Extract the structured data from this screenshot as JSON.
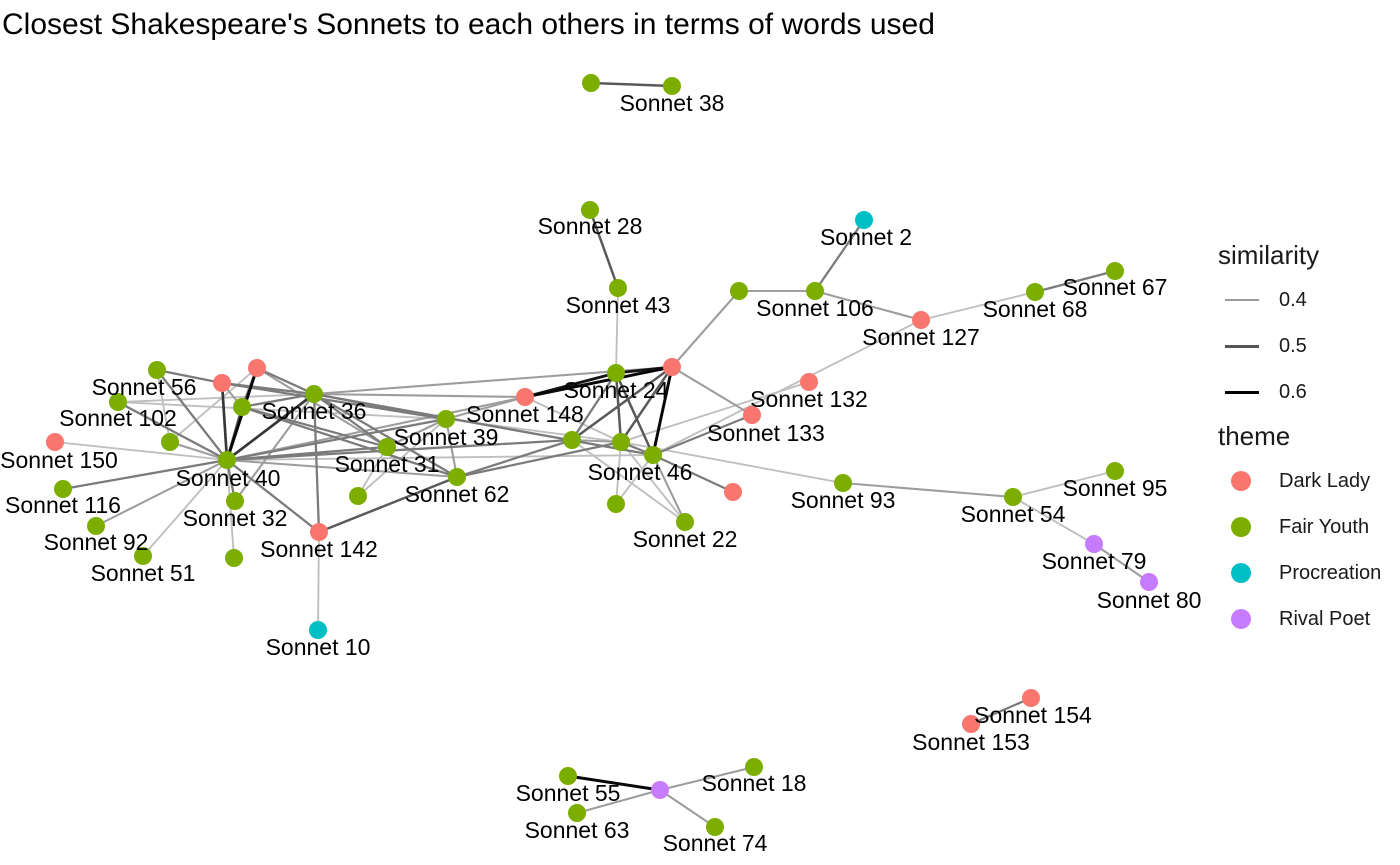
{
  "title": "Closest Shakespeare's Sonnets to each others in terms of words used",
  "colors": {
    "Dark Lady": "#F8766D",
    "Fair Youth": "#7CAE00",
    "Procreation": "#00BFC4",
    "Rival Poet": "#C77CFF"
  },
  "legend": {
    "similarity_title": "similarity",
    "similarity_items": [
      {
        "label": "0.4",
        "color": "#9a9a9a",
        "width": 2
      },
      {
        "label": "0.5",
        "color": "#555555",
        "width": 3
      },
      {
        "label": "0.6",
        "color": "#000000",
        "width": 3
      }
    ],
    "theme_title": "theme",
    "theme_items": [
      "Dark Lady",
      "Fair Youth",
      "Procreation",
      "Rival Poet"
    ]
  },
  "nodes": [
    {
      "id": "Sonnet 38",
      "label": "Sonnet 38",
      "theme": "Fair Youth"
    },
    {
      "id": "n38b",
      "label": "",
      "theme": "Fair Youth"
    },
    {
      "id": "Sonnet 28",
      "label": "Sonnet 28",
      "theme": "Fair Youth"
    },
    {
      "id": "Sonnet 2",
      "label": "Sonnet 2",
      "theme": "Procreation"
    },
    {
      "id": "Sonnet 43",
      "label": "Sonnet 43",
      "theme": "Fair Youth"
    },
    {
      "id": "n106b",
      "label": "",
      "theme": "Fair Youth"
    },
    {
      "id": "Sonnet 106",
      "label": "Sonnet 106",
      "theme": "Fair Youth"
    },
    {
      "id": "Sonnet 127",
      "label": "Sonnet 127",
      "theme": "Dark Lady"
    },
    {
      "id": "Sonnet 68",
      "label": "Sonnet 68",
      "theme": "Fair Youth"
    },
    {
      "id": "Sonnet 67",
      "label": "Sonnet 67",
      "theme": "Fair Youth"
    },
    {
      "id": "nHub",
      "label": "",
      "theme": "Dark Lady"
    },
    {
      "id": "Sonnet 24",
      "label": "Sonnet 24",
      "theme": "Fair Youth"
    },
    {
      "id": "Sonnet 132",
      "label": "Sonnet 132",
      "theme": "Dark Lady"
    },
    {
      "id": "Sonnet 133",
      "label": "Sonnet 133",
      "theme": "Dark Lady"
    },
    {
      "id": "Sonnet 148",
      "label": "Sonnet 148",
      "theme": "Dark Lady"
    },
    {
      "id": "Sonnet 46",
      "label": "Sonnet 46",
      "theme": "Fair Youth"
    },
    {
      "id": "nMid",
      "label": "",
      "theme": "Fair Youth"
    },
    {
      "id": "n46a",
      "label": "",
      "theme": "Fair Youth"
    },
    {
      "id": "n46b",
      "label": "",
      "theme": "Dark Lady"
    },
    {
      "id": "n46c",
      "label": "",
      "theme": "Fair Youth"
    },
    {
      "id": "Sonnet 22",
      "label": "Sonnet 22",
      "theme": "Fair Youth"
    },
    {
      "id": "Sonnet 93",
      "label": "Sonnet 93",
      "theme": "Fair Youth"
    },
    {
      "id": "Sonnet 54",
      "label": "Sonnet 54",
      "theme": "Fair Youth"
    },
    {
      "id": "Sonnet 95",
      "label": "Sonnet 95",
      "theme": "Fair Youth"
    },
    {
      "id": "Sonnet 79",
      "label": "Sonnet 79",
      "theme": "Rival Poet"
    },
    {
      "id": "Sonnet 80",
      "label": "Sonnet 80",
      "theme": "Rival Poet"
    },
    {
      "id": "Sonnet 56",
      "label": "Sonnet 56",
      "theme": "Dark Lady"
    },
    {
      "id": "n56a",
      "label": "",
      "theme": "Fair Youth"
    },
    {
      "id": "n56b",
      "label": "",
      "theme": "Dark Lady"
    },
    {
      "id": "n36a",
      "label": "",
      "theme": "Fair Youth"
    },
    {
      "id": "Sonnet 36",
      "label": "Sonnet 36",
      "theme": "Fair Youth"
    },
    {
      "id": "Sonnet 102",
      "label": "Sonnet 102",
      "theme": "Fair Youth"
    },
    {
      "id": "Sonnet 150",
      "label": "Sonnet 150",
      "theme": "Dark Lady"
    },
    {
      "id": "n102a",
      "label": "",
      "theme": "Fair Youth"
    },
    {
      "id": "Sonnet 40",
      "label": "Sonnet 40",
      "theme": "Fair Youth"
    },
    {
      "id": "Sonnet 39",
      "label": "Sonnet 39",
      "theme": "Fair Youth"
    },
    {
      "id": "Sonnet 31",
      "label": "Sonnet 31",
      "theme": "Fair Youth"
    },
    {
      "id": "Sonnet 62",
      "label": "Sonnet 62",
      "theme": "Fair Youth"
    },
    {
      "id": "n62a",
      "label": "",
      "theme": "Fair Youth"
    },
    {
      "id": "Sonnet 32",
      "label": "Sonnet 32",
      "theme": "Fair Youth"
    },
    {
      "id": "Sonnet 116",
      "label": "Sonnet 116",
      "theme": "Fair Youth"
    },
    {
      "id": "Sonnet 92",
      "label": "Sonnet 92",
      "theme": "Fair Youth"
    },
    {
      "id": "Sonnet 51",
      "label": "Sonnet 51",
      "theme": "Fair Youth"
    },
    {
      "id": "n51b",
      "label": "",
      "theme": "Fair Youth"
    },
    {
      "id": "Sonnet 142",
      "label": "Sonnet 142",
      "theme": "Dark Lady"
    },
    {
      "id": "Sonnet 10",
      "label": "Sonnet 10",
      "theme": "Procreation"
    },
    {
      "id": "Sonnet 154",
      "label": "Sonnet 154",
      "theme": "Dark Lady"
    },
    {
      "id": "Sonnet 153",
      "label": "Sonnet 153",
      "theme": "Dark Lady"
    },
    {
      "id": "Sonnet 55",
      "label": "Sonnet 55",
      "theme": "Fair Youth"
    },
    {
      "id": "nRP",
      "label": "",
      "theme": "Rival Poet"
    },
    {
      "id": "Sonnet 18",
      "label": "Sonnet 18",
      "theme": "Fair Youth"
    },
    {
      "id": "Sonnet 63",
      "label": "Sonnet 63",
      "theme": "Fair Youth"
    },
    {
      "id": "Sonnet 74",
      "label": "Sonnet 74",
      "theme": "Fair Youth"
    }
  ],
  "edges": [
    {
      "source": "n38b",
      "target": "Sonnet 38",
      "weight": 0.5
    },
    {
      "source": "Sonnet 28",
      "target": "Sonnet 43",
      "weight": 0.5
    },
    {
      "source": "Sonnet 43",
      "target": "Sonnet 24",
      "weight": 0.35
    },
    {
      "source": "Sonnet 2",
      "target": "Sonnet 106",
      "weight": 0.45
    },
    {
      "source": "n106b",
      "target": "Sonnet 106",
      "weight": 0.4
    },
    {
      "source": "Sonnet 106",
      "target": "Sonnet 127",
      "weight": 0.4
    },
    {
      "source": "n106b",
      "target": "nHub",
      "weight": 0.4
    },
    {
      "source": "Sonnet 127",
      "target": "Sonnet 68",
      "weight": 0.35
    },
    {
      "source": "Sonnet 68",
      "target": "Sonnet 67",
      "weight": 0.45
    },
    {
      "source": "Sonnet 127",
      "target": "Sonnet 46",
      "weight": 0.35
    },
    {
      "source": "nHub",
      "target": "Sonnet 24",
      "weight": 0.6
    },
    {
      "source": "nHub",
      "target": "Sonnet 148",
      "weight": 0.62
    },
    {
      "source": "nHub",
      "target": "Sonnet 46",
      "weight": 0.62
    },
    {
      "source": "nHub",
      "target": "nMid",
      "weight": 0.5
    },
    {
      "source": "nHub",
      "target": "n46a",
      "weight": 0.5
    },
    {
      "source": "nHub",
      "target": "Sonnet 133",
      "weight": 0.4
    },
    {
      "source": "nHub",
      "target": "Sonnet 36",
      "weight": 0.4
    },
    {
      "source": "Sonnet 24",
      "target": "Sonnet 148",
      "weight": 0.6
    },
    {
      "source": "Sonnet 24",
      "target": "n46a",
      "weight": 0.5
    },
    {
      "source": "Sonnet 24",
      "target": "Sonnet 46",
      "weight": 0.5
    },
    {
      "source": "Sonnet 24",
      "target": "nMid",
      "weight": 0.45
    },
    {
      "source": "Sonnet 132",
      "target": "n46a",
      "weight": 0.35
    },
    {
      "source": "Sonnet 133",
      "target": "Sonnet 46",
      "weight": 0.45
    },
    {
      "source": "Sonnet 148",
      "target": "n46a",
      "weight": 0.35
    },
    {
      "source": "Sonnet 148",
      "target": "Sonnet 40",
      "weight": 0.4
    },
    {
      "source": "n46a",
      "target": "Sonnet 46",
      "weight": 0.45
    },
    {
      "source": "nMid",
      "target": "n46a",
      "weight": 0.4
    },
    {
      "source": "nMid",
      "target": "Sonnet 62",
      "weight": 0.45
    },
    {
      "source": "nMid",
      "target": "Sonnet 40",
      "weight": 0.45
    },
    {
      "source": "Sonnet 46",
      "target": "n46b",
      "weight": 0.45
    },
    {
      "source": "Sonnet 46",
      "target": "Sonnet 22",
      "weight": 0.4
    },
    {
      "source": "Sonnet 46",
      "target": "n46c",
      "weight": 0.35
    },
    {
      "source": "n46a",
      "target": "n46c",
      "weight": 0.35
    },
    {
      "source": "n46a",
      "target": "Sonnet 22",
      "weight": 0.35
    },
    {
      "source": "nMid",
      "target": "Sonnet 22",
      "weight": 0.35
    },
    {
      "source": "n46a",
      "target": "Sonnet 93",
      "weight": 0.35
    },
    {
      "source": "n46a",
      "target": "Sonnet 62",
      "weight": 0.45
    },
    {
      "source": "Sonnet 93",
      "target": "Sonnet 54",
      "weight": 0.4
    },
    {
      "source": "Sonnet 54",
      "target": "Sonnet 95",
      "weight": 0.35
    },
    {
      "source": "Sonnet 54",
      "target": "Sonnet 79",
      "weight": 0.35
    },
    {
      "source": "Sonnet 79",
      "target": "Sonnet 80",
      "weight": 0.4
    },
    {
      "source": "Sonnet 40",
      "target": "n56b",
      "weight": 0.62
    },
    {
      "source": "Sonnet 40",
      "target": "Sonnet 56",
      "weight": 0.55
    },
    {
      "source": "Sonnet 40",
      "target": "n56a",
      "weight": 0.45
    },
    {
      "source": "Sonnet 40",
      "target": "n36a",
      "weight": 0.5
    },
    {
      "source": "Sonnet 40",
      "target": "Sonnet 36",
      "weight": 0.55
    },
    {
      "source": "Sonnet 40",
      "target": "Sonnet 102",
      "weight": 0.45
    },
    {
      "source": "Sonnet 40",
      "target": "n102a",
      "weight": 0.4
    },
    {
      "source": "Sonnet 40",
      "target": "Sonnet 150",
      "weight": 0.35
    },
    {
      "source": "Sonnet 40",
      "target": "Sonnet 39",
      "weight": 0.45
    },
    {
      "source": "Sonnet 40",
      "target": "Sonnet 31",
      "weight": 0.45
    },
    {
      "source": "Sonnet 40",
      "target": "Sonnet 62",
      "weight": 0.4
    },
    {
      "source": "Sonnet 40",
      "target": "Sonnet 32",
      "weight": 0.45
    },
    {
      "source": "Sonnet 40",
      "target": "Sonnet 116",
      "weight": 0.45
    },
    {
      "source": "Sonnet 40",
      "target": "Sonnet 92",
      "weight": 0.4
    },
    {
      "source": "Sonnet 40",
      "target": "Sonnet 51",
      "weight": 0.35
    },
    {
      "source": "Sonnet 40",
      "target": "n51b",
      "weight": 0.35
    },
    {
      "source": "Sonnet 40",
      "target": "Sonnet 142",
      "weight": 0.45
    },
    {
      "source": "Sonnet 40",
      "target": "Sonnet 46",
      "weight": 0.35
    },
    {
      "source": "Sonnet 56",
      "target": "n56a",
      "weight": 0.45
    },
    {
      "source": "Sonnet 56",
      "target": "Sonnet 36",
      "weight": 0.45
    },
    {
      "source": "Sonnet 56",
      "target": "Sonnet 39",
      "weight": 0.45
    },
    {
      "source": "Sonnet 56",
      "target": "n36a",
      "weight": 0.4
    },
    {
      "source": "n56b",
      "target": "n36a",
      "weight": 0.45
    },
    {
      "source": "n56b",
      "target": "Sonnet 36",
      "weight": 0.45
    },
    {
      "source": "n56b",
      "target": "Sonnet 31",
      "weight": 0.4
    },
    {
      "source": "n56b",
      "target": "n102a",
      "weight": 0.35
    },
    {
      "source": "n56a",
      "target": "n102a",
      "weight": 0.35
    },
    {
      "source": "Sonnet 102",
      "target": "Sonnet 36",
      "weight": 0.35
    },
    {
      "source": "Sonnet 102",
      "target": "Sonnet 39",
      "weight": 0.35
    },
    {
      "source": "n36a",
      "target": "Sonnet 36",
      "weight": 0.45
    },
    {
      "source": "n36a",
      "target": "Sonnet 31",
      "weight": 0.45
    },
    {
      "source": "n36a",
      "target": "Sonnet 62",
      "weight": 0.45
    },
    {
      "source": "Sonnet 36",
      "target": "Sonnet 39",
      "weight": 0.45
    },
    {
      "source": "Sonnet 36",
      "target": "Sonnet 31",
      "weight": 0.45
    },
    {
      "source": "Sonnet 36",
      "target": "Sonnet 62",
      "weight": 0.45
    },
    {
      "source": "Sonnet 36",
      "target": "Sonnet 142",
      "weight": 0.45
    },
    {
      "source": "Sonnet 36",
      "target": "Sonnet 32",
      "weight": 0.4
    },
    {
      "source": "Sonnet 36",
      "target": "Sonnet 46",
      "weight": 0.45
    },
    {
      "source": "Sonnet 36",
      "target": "Sonnet 148",
      "weight": 0.4
    },
    {
      "source": "Sonnet 39",
      "target": "Sonnet 62",
      "weight": 0.4
    },
    {
      "source": "Sonnet 39",
      "target": "Sonnet 31",
      "weight": 0.4
    },
    {
      "source": "Sonnet 39",
      "target": "Sonnet 148",
      "weight": 0.4
    },
    {
      "source": "Sonnet 39",
      "target": "n46a",
      "weight": 0.35
    },
    {
      "source": "Sonnet 39",
      "target": "n62a",
      "weight": 0.35
    },
    {
      "source": "Sonnet 31",
      "target": "n62a",
      "weight": 0.35
    },
    {
      "source": "Sonnet 62",
      "target": "Sonnet 142",
      "weight": 0.5
    },
    {
      "source": "Sonnet 142",
      "target": "Sonnet 10",
      "weight": 0.35
    },
    {
      "source": "Sonnet 154",
      "target": "Sonnet 153",
      "weight": 0.45
    },
    {
      "source": "Sonnet 55",
      "target": "nRP",
      "weight": 0.62
    },
    {
      "source": "Sonnet 63",
      "target": "nRP",
      "weight": 0.4
    },
    {
      "source": "nRP",
      "target": "Sonnet 18",
      "weight": 0.4
    },
    {
      "source": "nRP",
      "target": "Sonnet 74",
      "weight": 0.4
    }
  ]
}
